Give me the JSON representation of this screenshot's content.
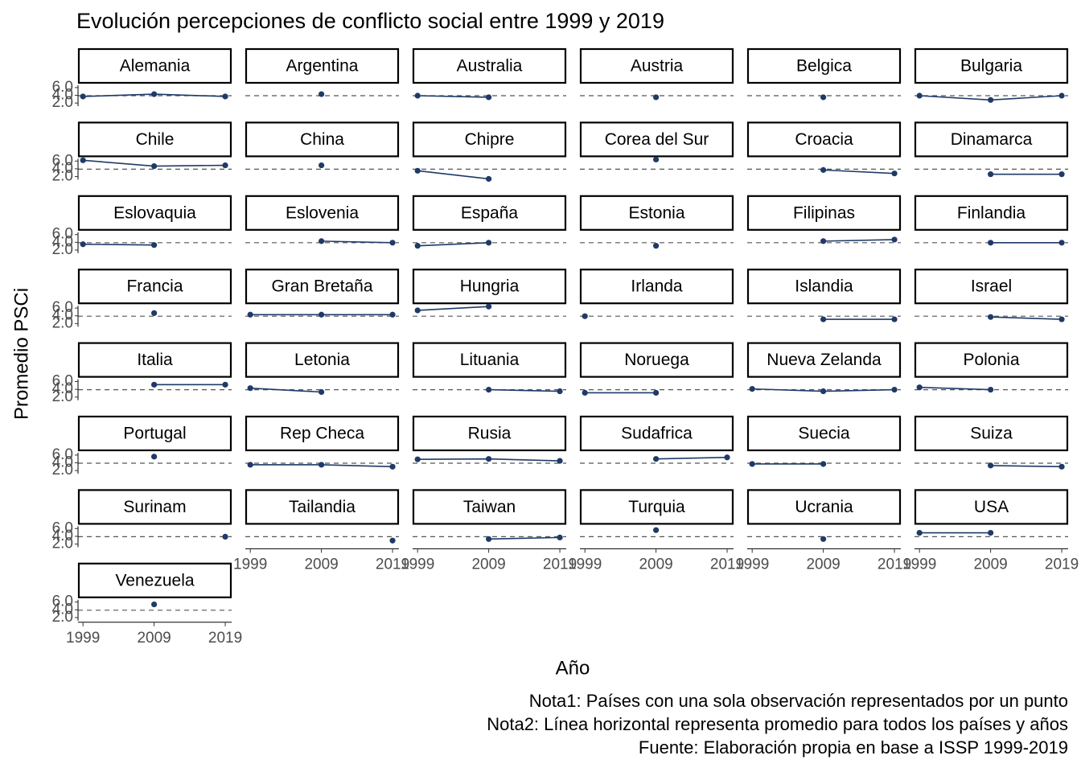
{
  "chart_data": {
    "type": "line",
    "title": "Evolución percepciones de conflicto social entre 1999 y 2019",
    "xlabel": "Año",
    "ylabel": "Promedio PSCi",
    "notes": [
      "Nota1: Países con una sola observación representados por un punto",
      "Nota2: Línea horizontal representa promedio para todos los países y años",
      "Fuente: Elaboración propia en base a ISSP 1999-2019"
    ],
    "x": [
      1999,
      2009,
      2019
    ],
    "xlim": [
      1998.3,
      2019.9
    ],
    "xticks": [
      1999,
      2009,
      2019
    ],
    "ylim": [
      1.2,
      6.6
    ],
    "yticks": [
      {
        "value": 2,
        "label": "2.0"
      },
      {
        "value": 4,
        "label": "4.0"
      },
      {
        "value": 6,
        "label": "6.0"
      }
    ],
    "hline": 3.9,
    "color": "#1f3a68",
    "grid": false,
    "panels": [
      {
        "name": "Alemania",
        "values": [
          3.7,
          4.3,
          3.7
        ]
      },
      {
        "name": "Argentina",
        "values": [
          null,
          4.3,
          null
        ]
      },
      {
        "name": "Australia",
        "values": [
          3.9,
          3.5,
          null
        ]
      },
      {
        "name": "Austria",
        "values": [
          null,
          3.5,
          null
        ]
      },
      {
        "name": "Belgica",
        "values": [
          null,
          3.5,
          null
        ]
      },
      {
        "name": "Bulgaria",
        "values": [
          3.9,
          2.8,
          3.9
        ]
      },
      {
        "name": "Chile",
        "values": [
          6.2,
          4.7,
          4.9
        ]
      },
      {
        "name": "China",
        "values": [
          null,
          4.9,
          null
        ]
      },
      {
        "name": "Chipre",
        "values": [
          3.5,
          1.4,
          null
        ]
      },
      {
        "name": "Corea del Sur",
        "values": [
          null,
          6.4,
          null
        ]
      },
      {
        "name": "Croacia",
        "values": [
          null,
          3.7,
          2.8
        ]
      },
      {
        "name": "Dinamarca",
        "values": [
          null,
          2.6,
          2.6
        ]
      },
      {
        "name": "Eslovaquia",
        "values": [
          3.5,
          3.3,
          null
        ]
      },
      {
        "name": "Eslovenia",
        "values": [
          null,
          4.3,
          3.9
        ]
      },
      {
        "name": "España",
        "values": [
          3.1,
          3.9,
          null
        ]
      },
      {
        "name": "Estonia",
        "values": [
          null,
          3.1,
          null
        ]
      },
      {
        "name": "Filipinas",
        "values": [
          null,
          4.3,
          4.7
        ]
      },
      {
        "name": "Finlandia",
        "values": [
          null,
          3.9,
          3.9
        ]
      },
      {
        "name": "Francia",
        "values": [
          null,
          4.7,
          null
        ]
      },
      {
        "name": "Gran Bretaña",
        "values": [
          4.3,
          4.3,
          4.3
        ]
      },
      {
        "name": "Hungria",
        "values": [
          5.4,
          6.4,
          null
        ]
      },
      {
        "name": "Irlanda",
        "values": [
          3.9,
          null,
          null
        ]
      },
      {
        "name": "Islandia",
        "values": [
          null,
          3.1,
          3.1
        ]
      },
      {
        "name": "Israel",
        "values": [
          null,
          3.7,
          3.1
        ]
      },
      {
        "name": "Italia",
        "values": [
          null,
          5.2,
          5.2
        ]
      },
      {
        "name": "Letonia",
        "values": [
          4.3,
          3.3,
          null
        ]
      },
      {
        "name": "Lituania",
        "values": [
          null,
          3.9,
          3.5
        ]
      },
      {
        "name": "Noruega",
        "values": [
          3.1,
          3.1,
          null
        ]
      },
      {
        "name": "Nueva Zelanda",
        "values": [
          4.1,
          3.5,
          3.9
        ]
      },
      {
        "name": "Polonia",
        "values": [
          4.5,
          3.9,
          null
        ]
      },
      {
        "name": "Portugal",
        "values": [
          null,
          5.6,
          null
        ]
      },
      {
        "name": "Rep Checa",
        "values": [
          3.5,
          3.5,
          3.0
        ]
      },
      {
        "name": "Rusia",
        "values": [
          4.9,
          5.0,
          4.5
        ]
      },
      {
        "name": "Sudafrica",
        "values": [
          null,
          5.0,
          5.4
        ]
      },
      {
        "name": "Suecia",
        "values": [
          3.7,
          3.7,
          null
        ]
      },
      {
        "name": "Suiza",
        "values": [
          null,
          3.3,
          3.0
        ]
      },
      {
        "name": "Surinam",
        "values": [
          null,
          null,
          3.9
        ]
      },
      {
        "name": "Tailandia",
        "values": [
          null,
          null,
          2.9
        ]
      },
      {
        "name": "Taiwan",
        "values": [
          null,
          3.3,
          3.7
        ]
      },
      {
        "name": "Turquia",
        "values": [
          null,
          5.6,
          null
        ]
      },
      {
        "name": "Ucrania",
        "values": [
          null,
          3.3,
          null
        ]
      },
      {
        "name": "USA",
        "values": [
          4.9,
          4.9,
          null
        ]
      },
      {
        "name": "Venezuela",
        "values": [
          null,
          5.4,
          null
        ]
      }
    ]
  }
}
